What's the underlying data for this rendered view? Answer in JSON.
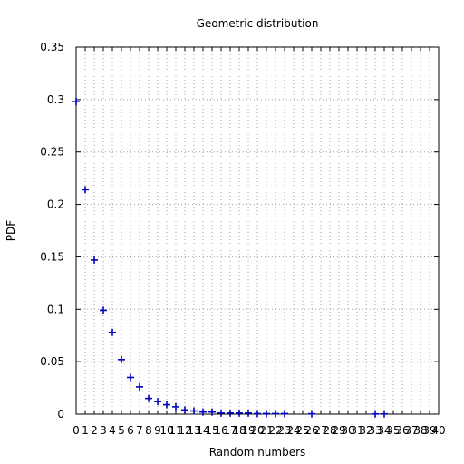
{
  "chart_data": {
    "type": "scatter",
    "title": "Geometric distribution",
    "xlabel": "Random numbers",
    "ylabel": "PDF",
    "xlim": [
      0,
      40
    ],
    "ylim": [
      0,
      0.35
    ],
    "x_ticks": [
      0,
      1,
      2,
      3,
      4,
      5,
      6,
      7,
      8,
      9,
      10,
      11,
      12,
      13,
      14,
      15,
      16,
      17,
      18,
      19,
      20,
      21,
      22,
      23,
      24,
      25,
      26,
      27,
      28,
      29,
      30,
      31,
      32,
      33,
      34,
      35,
      36,
      37,
      38,
      39,
      40
    ],
    "y_ticks": [
      0,
      0.05,
      0.1,
      0.15,
      0.2,
      0.25,
      0.3,
      0.35
    ],
    "y_tick_labels": [
      "0",
      "0.05",
      "0.1",
      "0.15",
      "0.2",
      "0.25",
      "0.3",
      "0.35"
    ],
    "grid": true,
    "marker": "plus",
    "color": "#0000c0",
    "points": [
      {
        "x": 0,
        "y": 0.298
      },
      {
        "x": 1,
        "y": 0.214
      },
      {
        "x": 2,
        "y": 0.147
      },
      {
        "x": 3,
        "y": 0.099
      },
      {
        "x": 4,
        "y": 0.078
      },
      {
        "x": 5,
        "y": 0.052
      },
      {
        "x": 6,
        "y": 0.035
      },
      {
        "x": 7,
        "y": 0.026
      },
      {
        "x": 8,
        "y": 0.015
      },
      {
        "x": 9,
        "y": 0.012
      },
      {
        "x": 10,
        "y": 0.009
      },
      {
        "x": 11,
        "y": 0.007
      },
      {
        "x": 12,
        "y": 0.004
      },
      {
        "x": 13,
        "y": 0.003
      },
      {
        "x": 14,
        "y": 0.002
      },
      {
        "x": 15,
        "y": 0.002
      },
      {
        "x": 16,
        "y": 0.001
      },
      {
        "x": 17,
        "y": 0.001
      },
      {
        "x": 18,
        "y": 0.001
      },
      {
        "x": 19,
        "y": 0.001
      },
      {
        "x": 20,
        "y": 0.0005
      },
      {
        "x": 21,
        "y": 0.0005
      },
      {
        "x": 22,
        "y": 0.0005
      },
      {
        "x": 23,
        "y": 0.0005
      },
      {
        "x": 26,
        "y": 0.0003
      },
      {
        "x": 33,
        "y": 0.0002
      },
      {
        "x": 34,
        "y": 0.0002
      }
    ]
  }
}
